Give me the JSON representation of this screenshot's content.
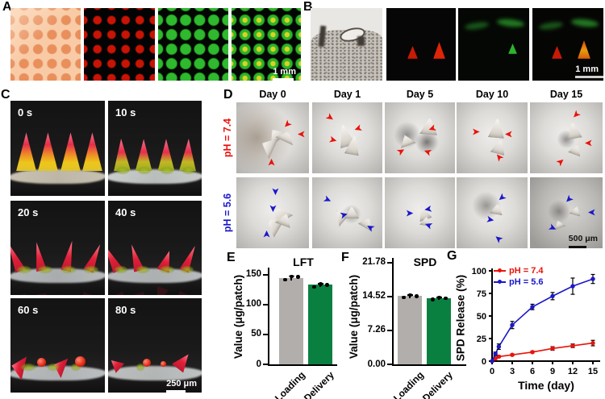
{
  "figure": {
    "panels": {
      "A": {
        "label": "A",
        "scale_bar": "1 mm",
        "images": [
          {
            "name": "brightfield-microneedle-array"
          },
          {
            "name": "red-fluorescence-array"
          },
          {
            "name": "green-fluorescence-array"
          },
          {
            "name": "merged-fluorescence-array"
          }
        ]
      },
      "B": {
        "label": "B",
        "scale_bar": "1 mm",
        "images": [
          {
            "name": "histology-skin-section"
          },
          {
            "name": "red-fluorescence-section"
          },
          {
            "name": "green-fluorescence-section"
          },
          {
            "name": "merged-fluorescence-section"
          }
        ]
      },
      "C": {
        "label": "C",
        "scale_bar": "250 μm",
        "timepoints": [
          "0 s",
          "10 s",
          "20 s",
          "40 s",
          "60 s",
          "80 s"
        ]
      },
      "D": {
        "label": "D",
        "scale_bar": "500 μm",
        "day_headers": [
          "Day 0",
          "Day 1",
          "Day 5",
          "Day 10",
          "Day 15"
        ],
        "row_labels": [
          {
            "text": "pH = 7.4",
            "color": "#e8130b"
          },
          {
            "text": "pH = 5.6",
            "color": "#1a18c8"
          }
        ]
      },
      "E": {
        "label": "E"
      },
      "F": {
        "label": "F"
      },
      "G": {
        "label": "G"
      }
    },
    "colors": {
      "loading_bar": "#b2aeab",
      "delivery_bar": "#0a8040",
      "ph74": "#e8130b",
      "ph56": "#1a18c8"
    }
  },
  "chart_data": [
    {
      "id": "E",
      "type": "bar",
      "title": "LFT",
      "ylabel": "Value (μg/patch)",
      "categories": [
        "Loading",
        "Delivery"
      ],
      "values": [
        145,
        133
      ],
      "errors": [
        4,
        3
      ],
      "points": [
        [
          142,
          146,
          148
        ],
        [
          130,
          133,
          135
        ]
      ],
      "yticks": [
        0,
        50,
        100,
        150
      ],
      "ytick_labels": [
        "0",
        "50",
        "100",
        "150"
      ],
      "ylim": [
        0,
        162
      ],
      "bar_colors": [
        "#b2aeab",
        "#0a8040"
      ]
    },
    {
      "id": "F",
      "type": "bar",
      "title": "SPD",
      "ylabel": "Value (μg/patch)",
      "categories": [
        "Loading",
        "Delivery"
      ],
      "values": [
        14.6,
        14.2
      ],
      "errors": [
        0.4,
        0.3
      ],
      "points": [
        [
          14.4,
          14.7,
          14.85
        ],
        [
          13.95,
          14.2,
          14.35
        ]
      ],
      "yticks": [
        0,
        7.26,
        14.52,
        21.78
      ],
      "ytick_labels": [
        "0.00",
        "7.26",
        "14.52",
        "21.78"
      ],
      "ylim": [
        0,
        22.8
      ],
      "bar_colors": [
        "#b2aeab",
        "#0a8040"
      ]
    },
    {
      "id": "G",
      "type": "line",
      "xlabel": "Time (day)",
      "ylabel": "SPD Release (%)",
      "xticks": [
        0,
        3,
        6,
        9,
        12,
        15
      ],
      "yticks": [
        0,
        25,
        50,
        75,
        100
      ],
      "xlim": [
        0,
        15.8
      ],
      "ylim": [
        0,
        100
      ],
      "legend_position": "top-left",
      "series": [
        {
          "name": "pH = 7.4",
          "color": "#e8130b",
          "x": [
            0,
            0.5,
            1,
            3,
            6,
            9,
            12,
            15
          ],
          "y": [
            0,
            3,
            5,
            7,
            10,
            14,
            17,
            20
          ],
          "err": [
            0,
            1,
            1,
            1,
            1,
            2,
            2,
            3
          ]
        },
        {
          "name": "pH = 5.6",
          "color": "#1a18c8",
          "x": [
            0,
            0.5,
            1,
            3,
            6,
            9,
            12,
            15
          ],
          "y": [
            0,
            8,
            16,
            40,
            60,
            72,
            83,
            91
          ],
          "err": [
            0,
            2,
            3,
            4,
            3,
            4,
            9,
            5
          ]
        }
      ]
    }
  ]
}
